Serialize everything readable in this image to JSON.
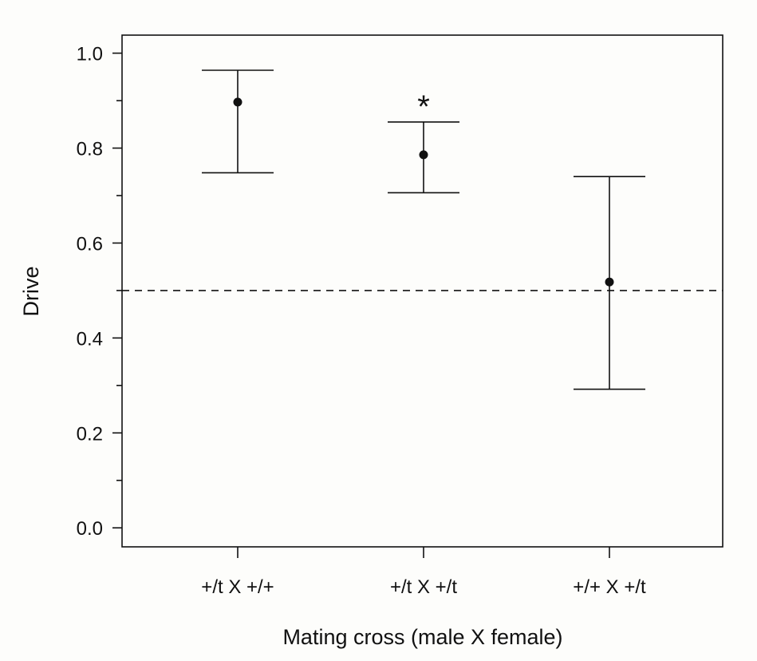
{
  "chart_data": {
    "type": "errorbar",
    "xlabel": "Mating cross (male X female)",
    "ylabel": "Drive",
    "categories": [
      "+/t X +/+",
      "+/t X +/t",
      "+/+ X +/t"
    ],
    "series": [
      {
        "name": "Drive",
        "values": [
          0.897,
          0.786,
          0.518
        ],
        "lower": [
          0.748,
          0.706,
          0.292
        ],
        "upper": [
          0.964,
          0.855,
          0.74
        ]
      }
    ],
    "ylim": [
      -0.04,
      1.038
    ],
    "yticks": [
      0.0,
      0.2,
      0.4,
      0.6,
      0.8,
      1.0
    ],
    "yticklabels": [
      "0.0",
      "0.2",
      "0.4",
      "0.6",
      "0.8",
      "1.0"
    ],
    "yminor_ticks": [
      0.1,
      0.3,
      0.5,
      0.7,
      0.9
    ],
    "reference_line": {
      "y": 0.5,
      "style": "dashed"
    },
    "annotations": [
      {
        "category_index": 1,
        "y": 0.9,
        "text": "*"
      }
    ],
    "grid": false
  }
}
